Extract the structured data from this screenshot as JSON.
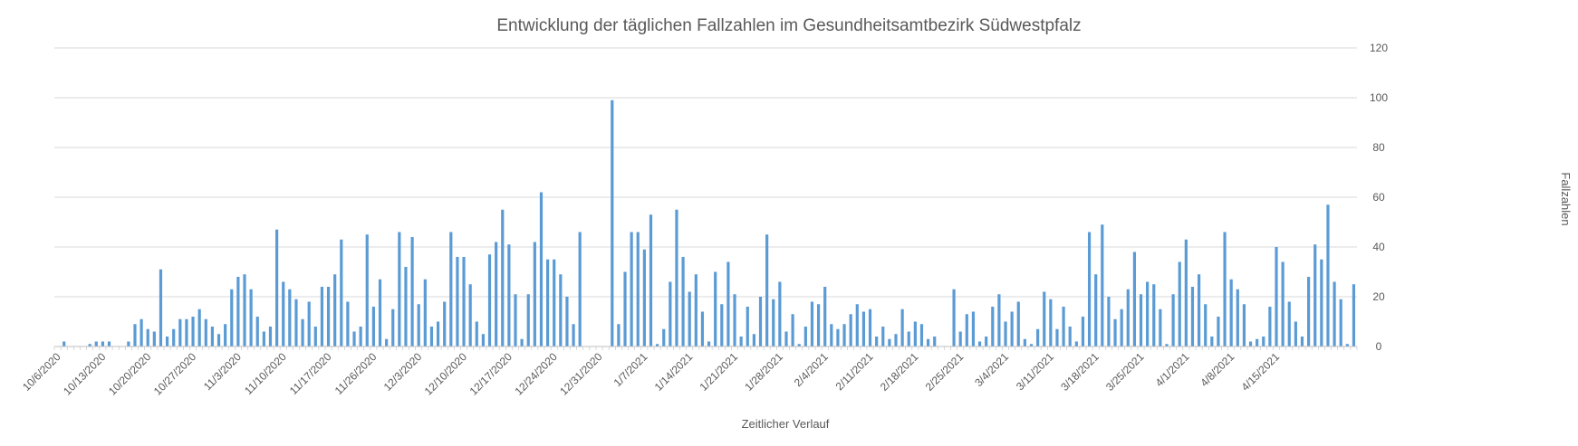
{
  "chart_data": {
    "type": "bar",
    "title": "Entwicklung der täglichen Fallzahlen im Gesundheitsamtbezirk Südwestpfalz",
    "xlabel": "Zeitlicher Verlauf",
    "ylabel": "Fallzahlen",
    "ylim": [
      0,
      120
    ],
    "yticks": [
      0,
      20,
      40,
      60,
      80,
      100,
      120
    ],
    "y_axis_side": "right",
    "grid": true,
    "legend": "none",
    "bar_color": "#5B9BD5",
    "x_tick_labels": [
      "10/6/2020",
      "10/13/2020",
      "10/20/2020",
      "10/27/2020",
      "11/3/2020",
      "11/10/2020",
      "11/17/2020",
      "11/26/2020",
      "12/3/2020",
      "12/10/2020",
      "12/17/2020",
      "12/24/2020",
      "12/31/2020",
      "1/7/2021",
      "1/14/2021",
      "1/21/2021",
      "1/28/2021",
      "2/4/2021",
      "2/11/2021",
      "2/18/2021",
      "2/25/2021",
      "3/4/2021",
      "3/11/2021",
      "3/18/2021",
      "3/25/2021",
      "4/1/2021",
      "4/8/2021",
      "4/15/2021"
    ],
    "start_date": "10/6/2020",
    "values": [
      0,
      2,
      0,
      0,
      0,
      1,
      2,
      2,
      2,
      0,
      0,
      2,
      9,
      11,
      7,
      6,
      31,
      4,
      7,
      11,
      11,
      12,
      15,
      11,
      8,
      5,
      9,
      23,
      28,
      29,
      23,
      12,
      6,
      8,
      47,
      26,
      23,
      19,
      11,
      18,
      8,
      24,
      24,
      29,
      43,
      18,
      6,
      8,
      45,
      16,
      27,
      3,
      15,
      46,
      32,
      44,
      17,
      27,
      8,
      10,
      18,
      46,
      36,
      36,
      25,
      10,
      5,
      37,
      42,
      55,
      41,
      21,
      3,
      21,
      42,
      62,
      35,
      35,
      29,
      20,
      9,
      46,
      0,
      0,
      0,
      0,
      99,
      9,
      30,
      46,
      46,
      39,
      53,
      1,
      7,
      26,
      55,
      36,
      22,
      29,
      14,
      2,
      30,
      17,
      34,
      21,
      4,
      16,
      5,
      20,
      45,
      19,
      26,
      6,
      13,
      1,
      8,
      18,
      17,
      24,
      9,
      7,
      9,
      13,
      17,
      14,
      15,
      4,
      8,
      3,
      5,
      15,
      6,
      10,
      9,
      3,
      4,
      0,
      0,
      23,
      6,
      13,
      14,
      2,
      4,
      16,
      21,
      10,
      14,
      18,
      3,
      1,
      7,
      22,
      19,
      7,
      16,
      8,
      2,
      12,
      46,
      29,
      49,
      20,
      11,
      15,
      23,
      38,
      21,
      26,
      25,
      15,
      1,
      21,
      34,
      43,
      24,
      29,
      17,
      4,
      12,
      46,
      27,
      23,
      17,
      2,
      3,
      4,
      16,
      40,
      34,
      18,
      10,
      4,
      28,
      41,
      35,
      57,
      26,
      19,
      1,
      25
    ]
  }
}
